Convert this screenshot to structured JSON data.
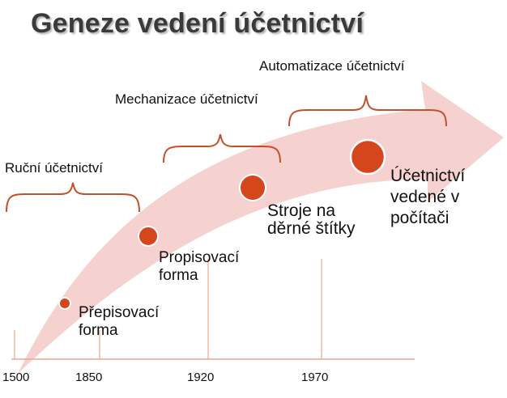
{
  "title": "Geneze vedení účetnictví",
  "eras": [
    {
      "label": "Ruční účetnictví"
    },
    {
      "label": "Mechanizace účetnictví"
    },
    {
      "label": "Automatizace účetnictví"
    }
  ],
  "milestones": [
    {
      "line1": "Přepisovací",
      "line2": "forma",
      "line3": ""
    },
    {
      "line1": "Propisovací",
      "line2": "forma",
      "line3": ""
    },
    {
      "line1": "Stroje na",
      "line2": "děrné štítky",
      "line3": ""
    },
    {
      "line1": "Účetnictví",
      "line2": "vedené v",
      "line3": "počítači"
    }
  ],
  "years": [
    "1500",
    "1850",
    "1920",
    "1970"
  ],
  "colors": {
    "arrow": "#f3c9c8",
    "dot": "#d6461c",
    "brace": "#c4502a",
    "axis": "#e8a88c",
    "title": "#3a3a3a"
  }
}
